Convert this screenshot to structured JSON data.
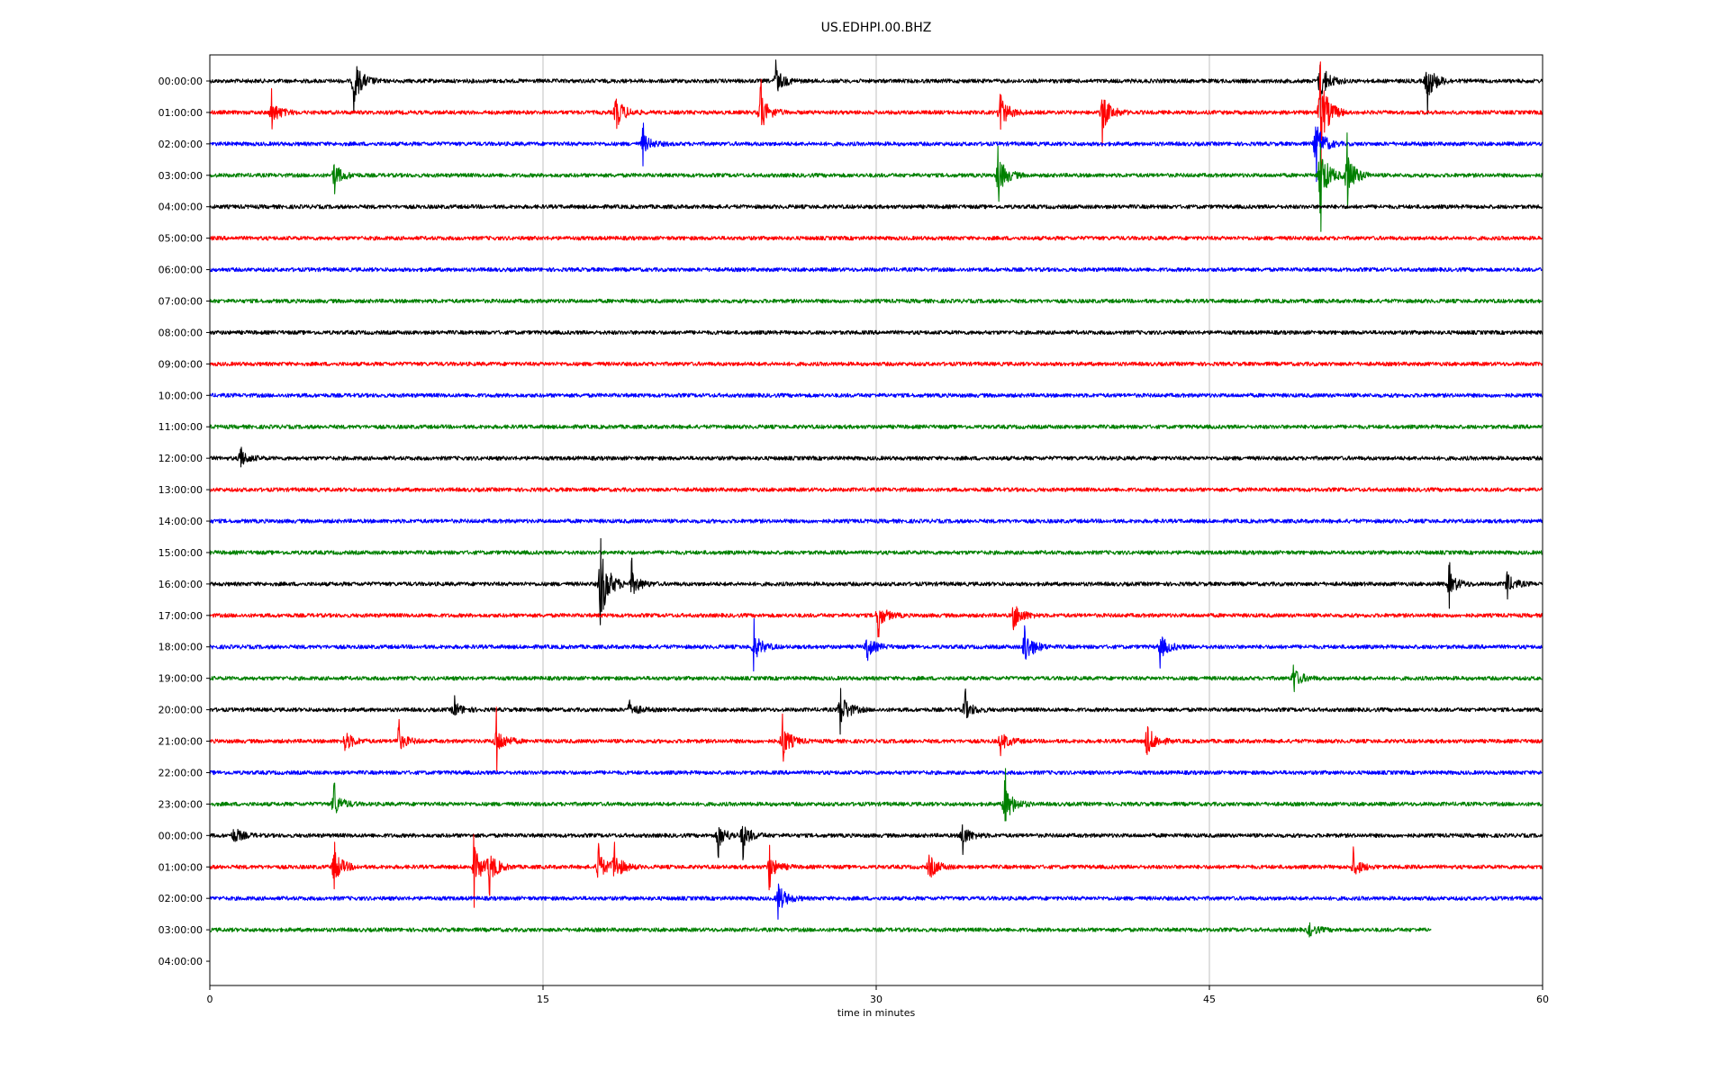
{
  "chart_data": {
    "type": "line",
    "title": "US.EDHPI.00.BHZ",
    "xlabel": "time in minutes",
    "ylabel": "",
    "xlim": [
      0,
      60
    ],
    "x_ticks": [
      0,
      15,
      30,
      45,
      60
    ],
    "grid": "vertical lines at x ticks",
    "row_labels": [
      "00:00:00",
      "01:00:00",
      "02:00:00",
      "03:00:00",
      "04:00:00",
      "05:00:00",
      "06:00:00",
      "07:00:00",
      "08:00:00",
      "09:00:00",
      "10:00:00",
      "11:00:00",
      "12:00:00",
      "13:00:00",
      "14:00:00",
      "15:00:00",
      "16:00:00",
      "17:00:00",
      "18:00:00",
      "19:00:00",
      "20:00:00",
      "21:00:00",
      "22:00:00",
      "23:00:00",
      "00:00:00",
      "01:00:00",
      "02:00:00",
      "03:00:00",
      "04:00:00"
    ],
    "colors": [
      "#000000",
      "#ff0000",
      "#0000ff",
      "#008000"
    ],
    "trace_end_minute": [
      60,
      60,
      60,
      60,
      60,
      60,
      60,
      60,
      60,
      60,
      60,
      60,
      60,
      60,
      60,
      60,
      60,
      60,
      60,
      60,
      60,
      60,
      60,
      60,
      60,
      60,
      60,
      55,
      null
    ],
    "events": [
      {
        "row": 0,
        "minute": 6.5,
        "amp": 1.1
      },
      {
        "row": 0,
        "minute": 25.5,
        "amp": 0.6
      },
      {
        "row": 0,
        "minute": 50.0,
        "amp": 1.0
      },
      {
        "row": 0,
        "minute": 54.8,
        "amp": 1.0
      },
      {
        "row": 1,
        "minute": 2.8,
        "amp": 0.6
      },
      {
        "row": 1,
        "minute": 18.3,
        "amp": 0.8
      },
      {
        "row": 1,
        "minute": 24.8,
        "amp": 0.9
      },
      {
        "row": 1,
        "minute": 35.6,
        "amp": 0.8
      },
      {
        "row": 1,
        "minute": 40.2,
        "amp": 0.9
      },
      {
        "row": 1,
        "minute": 50.0,
        "amp": 1.9
      },
      {
        "row": 2,
        "minute": 19.5,
        "amp": 0.5
      },
      {
        "row": 2,
        "minute": 49.8,
        "amp": 1.1
      },
      {
        "row": 3,
        "minute": 5.6,
        "amp": 0.6
      },
      {
        "row": 3,
        "minute": 35.5,
        "amp": 1.0
      },
      {
        "row": 3,
        "minute": 50.0,
        "amp": 1.5
      },
      {
        "row": 3,
        "minute": 51.2,
        "amp": 1.2
      },
      {
        "row": 12,
        "minute": 1.4,
        "amp": 0.4
      },
      {
        "row": 16,
        "minute": 17.6,
        "amp": 2.0
      },
      {
        "row": 16,
        "minute": 19.0,
        "amp": 0.6
      },
      {
        "row": 16,
        "minute": 55.8,
        "amp": 0.6
      },
      {
        "row": 16,
        "minute": 58.4,
        "amp": 0.5
      },
      {
        "row": 17,
        "minute": 30.1,
        "amp": 0.6
      },
      {
        "row": 17,
        "minute": 36.2,
        "amp": 0.7
      },
      {
        "row": 18,
        "minute": 24.5,
        "amp": 0.7
      },
      {
        "row": 18,
        "minute": 29.6,
        "amp": 0.5
      },
      {
        "row": 18,
        "minute": 36.7,
        "amp": 0.9
      },
      {
        "row": 18,
        "minute": 42.8,
        "amp": 0.6
      },
      {
        "row": 19,
        "minute": 48.8,
        "amp": 0.5
      },
      {
        "row": 20,
        "minute": 11.0,
        "amp": 0.4
      },
      {
        "row": 20,
        "minute": 18.9,
        "amp": 0.4
      },
      {
        "row": 20,
        "minute": 28.4,
        "amp": 0.9
      },
      {
        "row": 20,
        "minute": 34.0,
        "amp": 0.5
      },
      {
        "row": 21,
        "minute": 6.1,
        "amp": 0.5
      },
      {
        "row": 21,
        "minute": 8.5,
        "amp": 0.5
      },
      {
        "row": 21,
        "minute": 12.9,
        "amp": 0.8
      },
      {
        "row": 21,
        "minute": 25.8,
        "amp": 0.8
      },
      {
        "row": 21,
        "minute": 35.6,
        "amp": 0.5
      },
      {
        "row": 21,
        "minute": 42.2,
        "amp": 0.8
      },
      {
        "row": 23,
        "minute": 5.6,
        "amp": 0.6
      },
      {
        "row": 23,
        "minute": 35.8,
        "amp": 1.0
      },
      {
        "row": 24,
        "minute": 1.1,
        "amp": 0.4
      },
      {
        "row": 24,
        "minute": 22.9,
        "amp": 0.6
      },
      {
        "row": 24,
        "minute": 24.0,
        "amp": 0.6
      },
      {
        "row": 24,
        "minute": 33.9,
        "amp": 0.5
      },
      {
        "row": 25,
        "minute": 5.6,
        "amp": 0.9
      },
      {
        "row": 25,
        "minute": 11.9,
        "amp": 1.0
      },
      {
        "row": 25,
        "minute": 12.6,
        "amp": 0.7
      },
      {
        "row": 25,
        "minute": 17.5,
        "amp": 0.7
      },
      {
        "row": 25,
        "minute": 18.2,
        "amp": 0.7
      },
      {
        "row": 25,
        "minute": 25.2,
        "amp": 0.6
      },
      {
        "row": 25,
        "minute": 32.4,
        "amp": 0.6
      },
      {
        "row": 25,
        "minute": 51.5,
        "amp": 0.5
      },
      {
        "row": 26,
        "minute": 25.6,
        "amp": 0.7
      },
      {
        "row": 27,
        "minute": 49.5,
        "amp": 0.3
      }
    ]
  }
}
